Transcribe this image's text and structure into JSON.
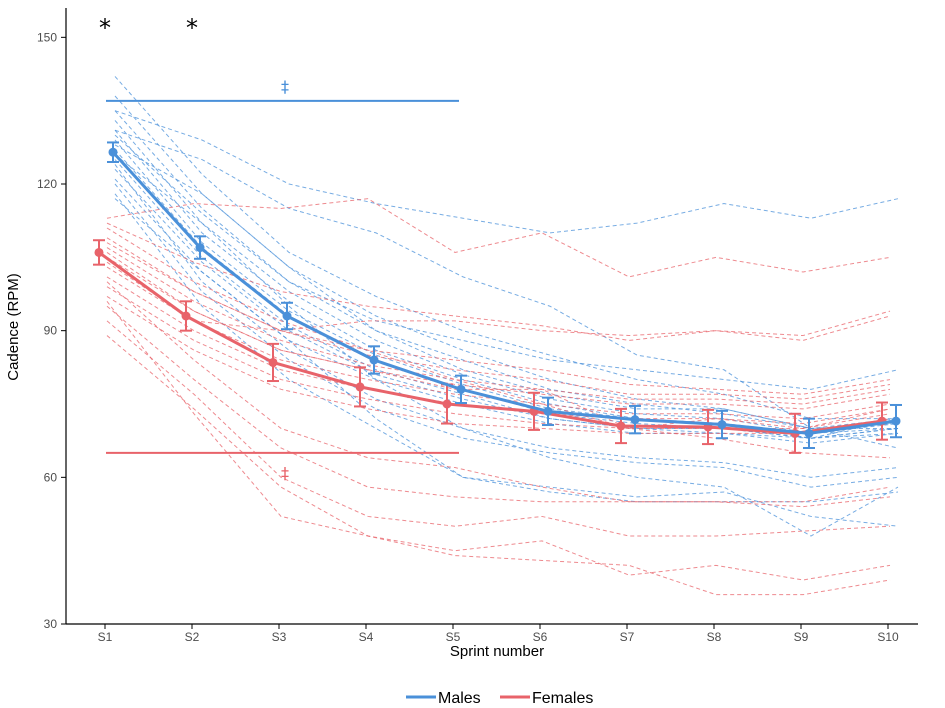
{
  "chart_data": {
    "type": "line",
    "title": "",
    "xlabel": "Sprint number",
    "ylabel": "Cadence (RPM)",
    "categories": [
      "S1",
      "S2",
      "S3",
      "S4",
      "S5",
      "S6",
      "S7",
      "S8",
      "S9",
      "S10"
    ],
    "y_ticks": [
      30,
      60,
      90,
      120,
      150
    ],
    "ylim": [
      30,
      156
    ],
    "grid": false,
    "legend_position": "bottom",
    "series": [
      {
        "name": "Males",
        "color": "#4a90d9",
        "values": [
          126.5,
          107.0,
          93.0,
          84.0,
          78.0,
          73.5,
          71.8,
          70.8,
          69.0,
          71.5
        ],
        "error": [
          2.0,
          2.3,
          2.7,
          2.8,
          2.8,
          2.8,
          2.8,
          2.8,
          3.0,
          3.3
        ]
      },
      {
        "name": "Females",
        "color": "#e8636a",
        "values": [
          106.0,
          93.0,
          83.5,
          78.5,
          75.0,
          73.5,
          70.5,
          70.3,
          69.0,
          71.5
        ],
        "error": [
          2.5,
          3.0,
          3.8,
          4.0,
          4.0,
          3.8,
          3.5,
          3.5,
          4.0,
          3.8
        ]
      }
    ],
    "individual_lines": {
      "Males": [
        [
          142,
          122,
          106,
          97,
          90,
          85,
          80,
          77,
          72,
          72
        ],
        [
          138,
          118,
          103,
          93,
          86,
          80,
          76,
          74,
          70,
          71
        ],
        [
          135,
          115,
          100,
          90,
          84,
          78,
          75,
          73,
          70,
          70
        ],
        [
          133,
          112,
          98,
          88,
          81,
          76,
          73,
          72,
          69,
          70
        ],
        [
          131,
          110,
          96,
          86,
          80,
          75,
          72,
          71,
          68,
          69
        ],
        [
          129,
          108,
          94,
          85,
          79,
          74,
          72,
          71,
          69,
          71
        ],
        [
          127,
          107,
          93,
          84,
          78,
          73,
          71,
          70,
          68,
          70
        ],
        [
          125,
          105,
          91,
          82,
          77,
          72,
          70,
          69,
          67,
          69
        ],
        [
          123,
          104,
          90,
          81,
          76,
          72,
          70,
          70,
          68,
          70
        ],
        [
          121,
          102,
          88,
          80,
          75,
          71,
          69,
          69,
          68,
          72
        ],
        [
          135,
          129,
          120,
          116,
          113,
          110,
          112,
          116,
          113,
          117
        ],
        [
          131,
          125,
          115,
          110,
          101,
          95,
          85,
          82,
          70,
          66
        ],
        [
          128,
          118,
          103,
          90,
          82,
          77,
          74,
          74,
          70,
          72
        ],
        [
          124,
          100,
          86,
          76,
          70,
          66,
          64,
          63,
          60,
          62
        ],
        [
          120,
          98,
          84,
          74,
          68,
          65,
          63,
          62,
          58,
          60
        ],
        [
          118,
          95,
          80,
          70,
          60,
          58,
          56,
          57,
          52,
          50
        ],
        [
          126,
          112,
          95,
          80,
          70,
          64,
          60,
          58,
          48,
          58
        ],
        [
          117,
          102,
          88,
          72,
          60,
          57,
          55,
          55,
          55,
          57
        ],
        [
          130,
          114,
          100,
          92,
          88,
          84,
          82,
          80,
          78,
          82
        ]
      ],
      "Females": [
        [
          111,
          100,
          92,
          86,
          84,
          82,
          79,
          78,
          77,
          80
        ],
        [
          109,
          98,
          90,
          85,
          82,
          80,
          77,
          77,
          76,
          79
        ],
        [
          107,
          96,
          88,
          83,
          80,
          78,
          76,
          76,
          75,
          78
        ],
        [
          105,
          94,
          86,
          82,
          79,
          77,
          75,
          75,
          74,
          77
        ],
        [
          103,
          92,
          84,
          80,
          77,
          75,
          73,
          73,
          72,
          75
        ],
        [
          101,
          90,
          82,
          78,
          75,
          73,
          72,
          72,
          71,
          74
        ],
        [
          99,
          88,
          80,
          76,
          73,
          71,
          70,
          70,
          70,
          73
        ],
        [
          97,
          86,
          78,
          74,
          71,
          70,
          69,
          69,
          69,
          72
        ],
        [
          113,
          116,
          115,
          117,
          106,
          110,
          101,
          105,
          102,
          105
        ],
        [
          104,
          92,
          90,
          92,
          92,
          90,
          89,
          90,
          89,
          94
        ],
        [
          112,
          104,
          98,
          95,
          93,
          91,
          88,
          90,
          88,
          93
        ],
        [
          100,
          84,
          70,
          64,
          62,
          58,
          55,
          55,
          55,
          58
        ],
        [
          95,
          80,
          66,
          58,
          56,
          55,
          55,
          55,
          54,
          56
        ],
        [
          92,
          77,
          60,
          52,
          50,
          52,
          48,
          48,
          49,
          50
        ],
        [
          96,
          73,
          52,
          48,
          45,
          47,
          40,
          42,
          39,
          42
        ],
        [
          89,
          74,
          58,
          48,
          44,
          43,
          42,
          36,
          36,
          39
        ],
        [
          106,
          94,
          86,
          82,
          78,
          78,
          70,
          72,
          70,
          74
        ],
        [
          108,
          98,
          90,
          86,
          80,
          75,
          70,
          68,
          65,
          64
        ]
      ]
    },
    "significance_bars": [
      {
        "series": "Males",
        "y": 137,
        "from": "S1",
        "to": "S5",
        "symbol": "‡",
        "symbol_y": 140,
        "symbol_at": "S3"
      },
      {
        "series": "Females",
        "y": 65,
        "from": "S1",
        "to": "S5",
        "symbol": "‡",
        "symbol_y": 61,
        "symbol_at": "S3"
      }
    ],
    "asterisks": [
      {
        "at": "S1",
        "symbol": "*"
      },
      {
        "at": "S2",
        "symbol": "*"
      }
    ]
  }
}
